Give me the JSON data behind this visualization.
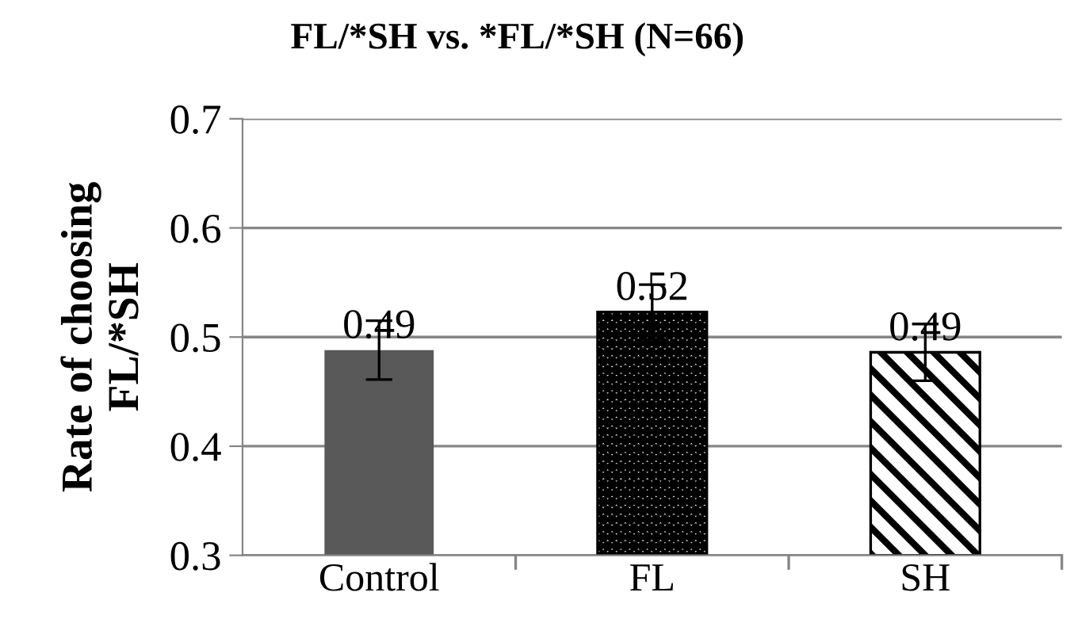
{
  "chart_data": {
    "type": "bar",
    "title": "FL/*SH vs. *FL/*SH (N=66)",
    "ylabel": "Rate of choosing\nFL/*SH",
    "categories": [
      "Control",
      "FL",
      "SH"
    ],
    "values": [
      0.488,
      0.523,
      0.486
    ],
    "errors": [
      0.027,
      0.025,
      0.026
    ],
    "value_labels": [
      "0.49",
      "0.52",
      "0.49"
    ],
    "colors": [
      "#595959",
      "#000000",
      "#000000"
    ],
    "ylim": [
      0.3,
      0.7
    ],
    "yticks": [
      0.3,
      0.4,
      0.5,
      0.6,
      0.7
    ],
    "grid": "y"
  }
}
